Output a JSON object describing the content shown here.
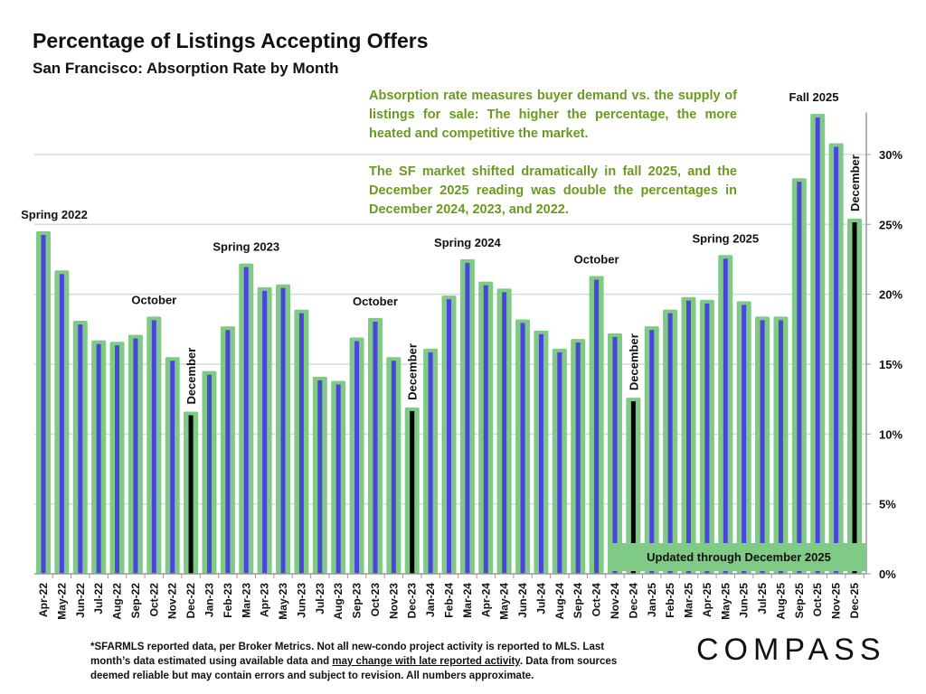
{
  "chart_data": {
    "type": "bar",
    "title": "Percentage of Listings Accepting Offers",
    "subtitle": "San Francisco:  Absorption Rate by Month",
    "xlabel": "",
    "ylabel": "",
    "ylim": [
      0,
      33
    ],
    "yticks": [
      "0%",
      "5%",
      "10%",
      "15%",
      "20%",
      "25%",
      "30%"
    ],
    "ytick_values": [
      0,
      5,
      10,
      15,
      20,
      25,
      30
    ],
    "grid": true,
    "categories": [
      "Apr-22",
      "May-22",
      "Jun-22",
      "Jul-22",
      "Aug-22",
      "Sep-22",
      "Oct-22",
      "Nov-22",
      "Dec-22",
      "Jan-23",
      "Feb-23",
      "Mar-23",
      "Apr-23",
      "May-23",
      "Jun-23",
      "Jul-23",
      "Aug-23",
      "Sep-23",
      "Oct-23",
      "Nov-23",
      "Dec-23",
      "Jan-24",
      "Feb-24",
      "Mar-24",
      "Apr-24",
      "May-24",
      "Jun-24",
      "Jul-24",
      "Aug-24",
      "Sep-24",
      "Oct-24",
      "Nov-24",
      "Dec-24",
      "Jan-25",
      "Feb-25",
      "Mar-25",
      "Apr-25",
      "May-25",
      "Jun-25",
      "Jul-25",
      "Aug-25",
      "Sep-25",
      "Oct-25",
      "Nov-25",
      "Dec-25"
    ],
    "values": [
      24.5,
      21.7,
      18.1,
      16.7,
      16.6,
      17.1,
      18.4,
      15.5,
      11.6,
      14.5,
      17.7,
      22.2,
      20.5,
      20.7,
      18.9,
      14.1,
      13.8,
      16.9,
      18.3,
      15.5,
      11.9,
      16.1,
      19.9,
      22.5,
      20.9,
      20.4,
      18.2,
      17.4,
      16.1,
      16.8,
      21.3,
      17.2,
      12.6,
      17.7,
      18.9,
      19.8,
      19.6,
      22.8,
      19.5,
      18.4,
      18.4,
      28.3,
      32.9,
      30.8,
      25.4
    ],
    "highlight_categories": [
      "Dec-22",
      "Dec-23",
      "Dec-24",
      "Dec-25"
    ],
    "colors": {
      "outer": "#7fcb85",
      "inner": "#4b45dc",
      "highlight": "#000000",
      "grid": "#d9d9d9"
    },
    "annotations": [
      {
        "text": "Spring 2022",
        "category": "Apr-22",
        "vertical": false
      },
      {
        "text": "October",
        "category": "Oct-22",
        "vertical": false
      },
      {
        "text": "December",
        "category": "Dec-22",
        "vertical": true
      },
      {
        "text": "Spring 2023",
        "category": "Mar-23",
        "vertical": false
      },
      {
        "text": "October",
        "category": "Oct-23",
        "vertical": false
      },
      {
        "text": "December",
        "category": "Dec-23",
        "vertical": true
      },
      {
        "text": "Spring 2024",
        "category": "Mar-24",
        "vertical": false
      },
      {
        "text": "October",
        "category": "Oct-24",
        "vertical": false
      },
      {
        "text": "December",
        "category": "Dec-24",
        "vertical": true
      },
      {
        "text": "Spring 2025",
        "category": "May-25",
        "vertical": false
      },
      {
        "text": "Fall 2025",
        "category": "Oct-25",
        "vertical": false
      },
      {
        "text": "December",
        "category": "Dec-25",
        "vertical": true
      }
    ],
    "updated_label": "Updated through December 2025"
  },
  "note": {
    "p1": "Absorption rate measures buyer demand vs. the supply of listings for sale: The higher the percentage, the more heated and competitive the market.",
    "p2": "The SF market shifted dramatically in fall 2025, and the December 2025 reading was double the percentages in December 2024, 2023, and 2022."
  },
  "footnote": {
    "part1": "*SFARMLS reported data, per Broker Metrics. Not all new-condo project activity is reported to MLS. Last month’s data estimated using available data and ",
    "underlined": "may change with late reported activity",
    "part2": ". Data from sources deemed reliable but may contain errors and subject to revision. All numbers approximate."
  },
  "logo": "COMPASS"
}
